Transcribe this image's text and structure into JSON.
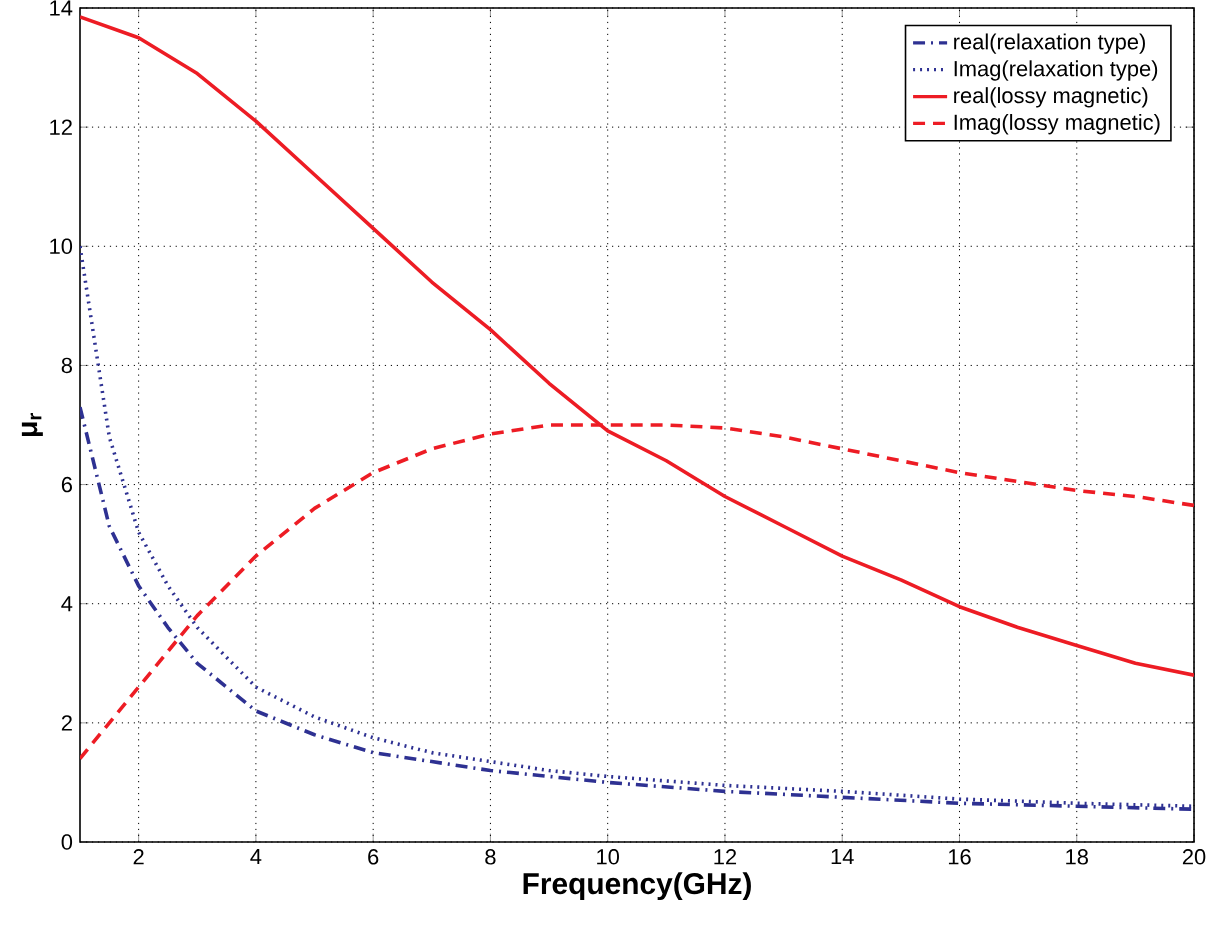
{
  "chart_data": {
    "type": "line",
    "xlabel": "Frequency(GHz)",
    "ylabel": "μ$_{r}$",
    "xlim": [
      1,
      20
    ],
    "ylim": [
      0,
      14
    ],
    "xticks": [
      2,
      4,
      6,
      8,
      10,
      12,
      14,
      16,
      18,
      20
    ],
    "yticks": [
      0,
      2,
      4,
      6,
      8,
      10,
      12,
      14
    ],
    "grid": true,
    "legend": "top right",
    "marker": "none",
    "series": [
      {
        "name": "real(relaxation type)",
        "color": "#2e3192",
        "line_style": "dashdot",
        "x": [
          1,
          1.5,
          2,
          2.5,
          3,
          4,
          5,
          6,
          7,
          8,
          9,
          10,
          12,
          14,
          16,
          18,
          20
        ],
        "values": [
          7.3,
          5.3,
          4.3,
          3.6,
          3.0,
          2.2,
          1.8,
          1.5,
          1.35,
          1.2,
          1.1,
          1.0,
          0.85,
          0.75,
          0.65,
          0.6,
          0.55
        ]
      },
      {
        "name": "Imag(relaxation type)",
        "color": "#2e3192",
        "line_style": "dotted",
        "x": [
          1,
          1.5,
          2,
          2.5,
          3,
          4,
          5,
          6,
          7,
          8,
          9,
          10,
          12,
          14,
          16,
          18,
          20
        ],
        "values": [
          10,
          6.8,
          5.2,
          4.3,
          3.6,
          2.6,
          2.1,
          1.75,
          1.5,
          1.35,
          1.2,
          1.1,
          0.95,
          0.85,
          0.72,
          0.65,
          0.6
        ]
      },
      {
        "name": "real(lossy magnetic)",
        "color": "#ed1c24",
        "line_style": "solid",
        "x": [
          1,
          2,
          3,
          4,
          5,
          6,
          7,
          8,
          9,
          10,
          11,
          12,
          13,
          14,
          15,
          16,
          17,
          18,
          19,
          20
        ],
        "values": [
          13.85,
          13.5,
          12.9,
          12.1,
          11.2,
          10.3,
          9.4,
          8.6,
          7.7,
          6.9,
          6.4,
          5.8,
          5.3,
          4.8,
          4.4,
          3.95,
          3.6,
          3.3,
          3.0,
          2.8
        ]
      },
      {
        "name": "Imag(lossy magnetic)",
        "color": "#ed1c24",
        "line_style": "dashed",
        "x": [
          1,
          2,
          3,
          4,
          5,
          6,
          7,
          8,
          9,
          10,
          11,
          12,
          13,
          14,
          15,
          16,
          17,
          18,
          19,
          20
        ],
        "values": [
          1.4,
          2.6,
          3.8,
          4.8,
          5.6,
          6.2,
          6.6,
          6.85,
          7.0,
          7.0,
          7.0,
          6.95,
          6.8,
          6.6,
          6.4,
          6.2,
          6.05,
          5.9,
          5.8,
          5.65
        ]
      }
    ]
  }
}
